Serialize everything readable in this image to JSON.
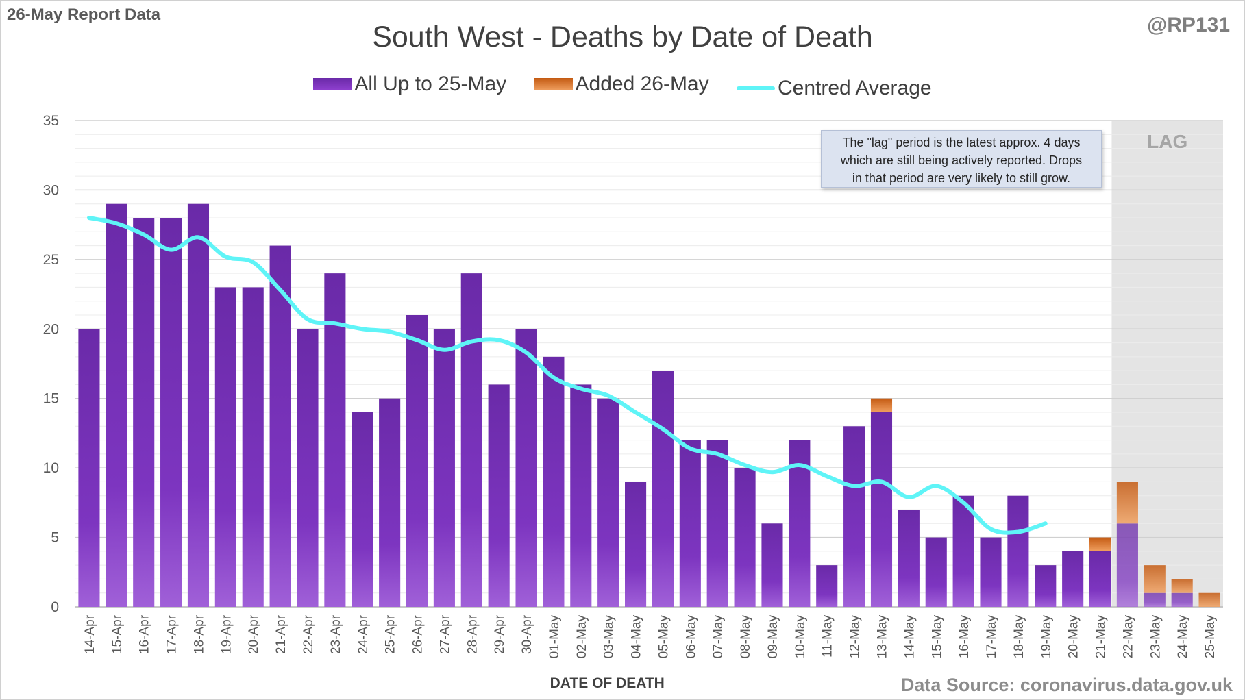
{
  "header": {
    "report_label": "26-May Report Data",
    "handle": "@RP131",
    "title": "South West - Deaths by Date of Death"
  },
  "legend": {
    "items": [
      {
        "label": "All Up to 25-May",
        "color": "#7a34bd"
      },
      {
        "label": "Added 26-May",
        "color": "#e0782a"
      },
      {
        "label": "Centred Average",
        "color": "#5ff4f7"
      }
    ]
  },
  "annotation": {
    "lag_label": "LAG",
    "note_lines": [
      "The \"lag\" period is the latest approx. 4 days",
      "which are still being actively reported. Drops",
      "in that period are very likely to still grow."
    ]
  },
  "footer": {
    "source": "Data Source: coronavirus.data.gov.uk"
  },
  "chart_data": {
    "type": "bar",
    "stacked": true,
    "title": "South West - Deaths by Date of Death",
    "xlabel": "DATE OF DEATH",
    "ylabel": "",
    "ylim": [
      0,
      35
    ],
    "yticks": [
      0,
      5,
      10,
      15,
      20,
      25,
      30,
      35
    ],
    "grid": true,
    "legend_position": "top",
    "categories": [
      "14-Apr",
      "15-Apr",
      "16-Apr",
      "17-Apr",
      "18-Apr",
      "19-Apr",
      "20-Apr",
      "21-Apr",
      "22-Apr",
      "23-Apr",
      "24-Apr",
      "25-Apr",
      "26-Apr",
      "27-Apr",
      "28-Apr",
      "29-Apr",
      "30-Apr",
      "01-May",
      "02-May",
      "03-May",
      "04-May",
      "05-May",
      "06-May",
      "07-May",
      "08-May",
      "09-May",
      "10-May",
      "11-May",
      "12-May",
      "13-May",
      "14-May",
      "15-May",
      "16-May",
      "17-May",
      "18-May",
      "19-May",
      "20-May",
      "21-May",
      "22-May",
      "23-May",
      "24-May",
      "25-May"
    ],
    "series": [
      {
        "name": "All Up to 25-May",
        "kind": "bar",
        "color": "#7a34bd",
        "values": [
          20,
          29,
          28,
          28,
          29,
          23,
          23,
          26,
          20,
          24,
          14,
          15,
          21,
          20,
          24,
          16,
          20,
          18,
          16,
          15,
          9,
          17,
          12,
          12,
          10,
          6,
          12,
          3,
          13,
          14,
          7,
          5,
          8,
          5,
          8,
          3,
          4,
          4,
          6,
          1,
          1,
          0
        ]
      },
      {
        "name": "Added 26-May",
        "kind": "bar",
        "color": "#e0782a",
        "values": [
          0,
          0,
          0,
          0,
          0,
          0,
          0,
          0,
          0,
          0,
          0,
          0,
          0,
          0,
          0,
          0,
          0,
          0,
          0,
          0,
          0,
          0,
          0,
          0,
          0,
          0,
          0,
          0,
          0,
          1,
          0,
          0,
          0,
          0,
          0,
          0,
          0,
          1,
          3,
          2,
          1,
          1
        ]
      },
      {
        "name": "Centred Average",
        "kind": "line",
        "color": "#5ff4f7",
        "values": [
          28,
          27.6,
          26.8,
          25.7,
          26.6,
          25.2,
          24.8,
          22.8,
          20.7,
          20.4,
          20.0,
          19.8,
          19.2,
          18.5,
          19.1,
          19.2,
          18.3,
          16.5,
          15.7,
          15.2,
          14.0,
          12.8,
          11.4,
          11.0,
          10.2,
          9.7,
          10.2,
          9.4,
          8.7,
          9.0,
          7.9,
          8.7,
          7.5,
          5.6,
          5.4,
          6.0,
          null,
          null,
          null,
          null,
          null,
          null
        ]
      }
    ],
    "lag_region": [
      "22-May",
      "25-May"
    ]
  }
}
